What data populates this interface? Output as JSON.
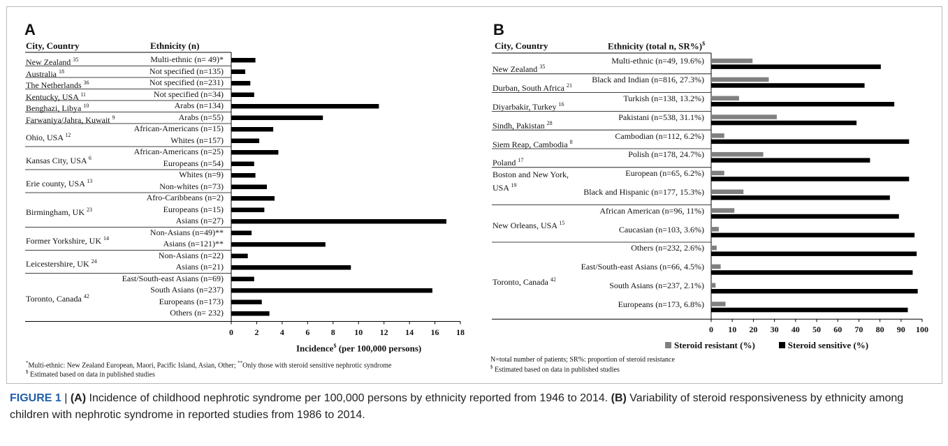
{
  "panel_a": {
    "letter": "A",
    "col_city": "City, Country",
    "col_eth": "Ethnicity (n)",
    "x_axis_label": "Incidence",
    "x_axis_label_sup": "$",
    "x_axis_label_tail": " (per 100,000 persons)",
    "footnote_1_sup1": "*",
    "footnote_1_a": "Multi-ethnic: New Zealand European, Maori, Pacific Island, Asian, Other; ",
    "footnote_1_sup2": "**",
    "footnote_1_b": "Only those with steroid sensitive nephrotic syndrome",
    "footnote_2_sup": "$",
    "footnote_2": " Estimated based on data in published studies",
    "groups": [
      {
        "city": "New Zealand",
        "ref": "35",
        "rows": 1
      },
      {
        "city": "Australia",
        "ref": "18",
        "rows": 1
      },
      {
        "city": "The Netherlands",
        "ref": "36",
        "rows": 1
      },
      {
        "city": "Kentucky, USA",
        "ref": "11",
        "rows": 1
      },
      {
        "city": "Benghazi, Libya",
        "ref": "10",
        "rows": 1
      },
      {
        "city": "Farwaniya/Jahra, Kuwait",
        "ref": "9",
        "rows": 1
      },
      {
        "city": "Ohio, USA",
        "ref": "12",
        "rows": 2
      },
      {
        "city": "Kansas City, USA",
        "ref": "6",
        "rows": 2
      },
      {
        "city": "Erie county, USA",
        "ref": "13",
        "rows": 2
      },
      {
        "city": "Birmingham, UK",
        "ref": "23",
        "rows": 3
      },
      {
        "city": "Former Yorkshire, UK",
        "ref": "14",
        "rows": 2
      },
      {
        "city": "Leicestershire, UK",
        "ref": "24",
        "rows": 2
      },
      {
        "city": "Toronto, Canada",
        "ref": "42",
        "rows": 4
      }
    ]
  },
  "panel_b": {
    "letter": "B",
    "col_city": "City, Country",
    "col_eth": "Ethnicity (total n, SR%)",
    "col_eth_sup": "$",
    "legend_resistant": "Steroid resistant (%)",
    "legend_sensitive": "Steroid sensitive (%)",
    "footnote_1": "N=total number of patients; SR%: proportion of steroid resistance",
    "footnote_2_sup": "$",
    "footnote_2": " Estimated based on data in published studies",
    "groups": [
      {
        "city": "New Zealand",
        "ref": "35",
        "rows": 1
      },
      {
        "city": "Durban, South Africa",
        "ref": "21",
        "rows": 1
      },
      {
        "city": "Diyarbakir, Turkey",
        "ref": "16",
        "rows": 1
      },
      {
        "city": "Sindh, Pakistan",
        "ref": "28",
        "rows": 1
      },
      {
        "city": "Siem Reap, Cambodia",
        "ref": "8",
        "rows": 1
      },
      {
        "city": "Poland",
        "ref": "17",
        "rows": 1
      },
      {
        "city": "Boston and New York,",
        "city_line2": "USA",
        "ref": "19",
        "rows": 2
      },
      {
        "city": "New Orleans, USA",
        "ref": "15",
        "rows": 2
      },
      {
        "city": "Toronto, Canada",
        "ref": "42",
        "rows": 4
      }
    ]
  },
  "caption": {
    "label": "FIGURE 1",
    "sep": " | ",
    "a_letter": "(A)",
    "a_text": " Incidence of childhood nephrotic syndrome per 100,000 persons by ethnicity reported from 1946 to 2014. ",
    "b_letter": "(B)",
    "b_text": " Variability of steroid responsiveness by ethnicity among children with nephrotic syndrome in reported studies from 1986 to 2014."
  },
  "chart_data": [
    {
      "type": "bar",
      "orientation": "horizontal",
      "categories": [
        "Multi-ethnic (n= 49)*",
        "Not specified (n=135)",
        "Not specified (n=231)",
        "Not specified (n=34)",
        "Arabs (n=134)",
        "Arabs (n=55)",
        "African-Americans (n=15)",
        "Whites (n=157)",
        "African-Americans (n=25)",
        "Europeans (n=54)",
        "Whites (n=9)",
        "Non-whites (n=73)",
        "Afro-Caribbeans (n=2)",
        "Europeans (n=15)",
        "Asians (n=27)",
        "Non-Asians (n=49)**",
        "Asians (n=121)**",
        "Non-Asians (n=22)",
        "Asians (n=21)",
        "East/South-east Asians (n=69)",
        "South Asians (n=237)",
        "Europeans (n=173)",
        "Others (n= 232)"
      ],
      "values": [
        1.9,
        1.1,
        1.5,
        1.8,
        11.6,
        7.2,
        3.3,
        2.2,
        3.7,
        1.8,
        1.9,
        2.8,
        3.4,
        2.6,
        16.9,
        1.6,
        7.4,
        1.3,
        9.4,
        1.8,
        15.8,
        2.4,
        3.0
      ],
      "xlim": [
        0,
        18
      ],
      "xticks": [
        0,
        2,
        4,
        6,
        8,
        10,
        12,
        14,
        16,
        18
      ],
      "grid": false
    },
    {
      "type": "bar",
      "orientation": "horizontal",
      "categories": [
        "Multi-ethnic (n=49, 19.6%)",
        "Black and Indian (n=816, 27.3%)",
        "Turkish (n=138, 13.2%)",
        "Pakistani (n=538, 31.1%)",
        "Cambodian (n=112, 6.2%)",
        "Polish (n=178, 24.7%)",
        "European (n=65, 6.2%)",
        "Black and Hispanic (n=177, 15.3%)",
        "African American (n=96, 11%)",
        "Caucasian (n=103, 3.6%)",
        "Others (n=232, 2.6%)",
        "East/South-east Asians (n=66, 4.5%)",
        "South Asians (n=237, 2.1%)",
        "Europeans (n=173, 6.8%)"
      ],
      "series": [
        {
          "name": "Steroid resistant (%)",
          "color": "#808080",
          "values": [
            19.6,
            27.3,
            13.2,
            31.1,
            6.2,
            24.7,
            6.2,
            15.3,
            11,
            3.6,
            2.6,
            4.5,
            2.1,
            6.8
          ]
        },
        {
          "name": "Steroid sensitive (%)",
          "color": "#000000",
          "values": [
            80.4,
            72.7,
            86.8,
            68.9,
            93.8,
            75.3,
            93.8,
            84.7,
            89,
            96.4,
            97.4,
            95.5,
            97.9,
            93.2
          ]
        }
      ],
      "xlim": [
        0,
        100
      ],
      "xticks": [
        0,
        10,
        20,
        30,
        40,
        50,
        60,
        70,
        80,
        90,
        100
      ],
      "legend": "bottom",
      "grid": false
    }
  ]
}
